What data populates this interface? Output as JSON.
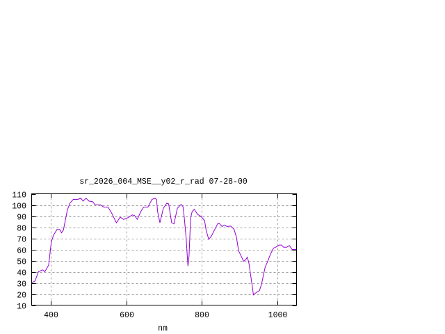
{
  "chart_data": {
    "type": "line",
    "title": "sr_2026_004_MSE__y02_r_rad 07-28-00",
    "xlabel": "nm",
    "ylabel": "",
    "xlim": [
      350,
      1050
    ],
    "ylim": [
      10,
      110
    ],
    "xticks": [
      400,
      600,
      800,
      1000
    ],
    "yticks": [
      10,
      20,
      30,
      40,
      50,
      60,
      70,
      80,
      90,
      100,
      110
    ],
    "grid": true,
    "legend": "none",
    "line_color": "#9400d3",
    "series": [
      {
        "x": [
          350,
          359,
          368,
          379,
          385,
          395,
          402,
          408,
          417,
          424,
          429,
          434,
          439,
          444,
          451,
          460,
          472,
          480,
          486,
          494,
          501,
          511,
          518,
          532,
          541,
          552,
          561,
          574,
          584,
          593,
          604,
          616,
          622,
          629,
          640,
          646,
          657,
          668,
          676,
          680,
          683,
          689,
          698,
          707,
          712,
          720,
          726,
          735,
          745,
          750,
          753,
          758,
          763,
          766,
          770,
          774,
          780,
          788,
          798,
          807,
          811,
          818,
          825,
          833,
          842,
          846,
          853,
          860,
          866,
          876,
          885,
          891,
          897,
          903,
          910,
          915,
          920,
          924,
          931,
          936,
          945,
          952,
          958,
          967,
          973,
          981,
          989,
          998,
          1004,
          1010,
          1016,
          1024,
          1031,
          1038,
          1050
        ],
        "y": [
          30,
          31.7,
          40,
          41.7,
          40,
          46,
          67,
          73,
          78,
          78,
          75,
          77.5,
          86,
          95,
          101.5,
          105,
          105,
          106,
          103.5,
          106,
          103.5,
          103,
          100,
          100,
          98,
          98,
          93,
          84,
          89,
          87,
          88.5,
          91,
          90.5,
          87,
          95,
          98,
          98,
          105,
          106,
          105,
          94,
          84,
          97,
          101.5,
          101,
          84,
          83,
          97,
          100.5,
          98.5,
          90,
          71,
          45,
          54.5,
          88,
          94,
          96,
          91.7,
          89.5,
          86,
          77.5,
          69,
          72,
          77.5,
          83.3,
          83.3,
          80.6,
          82,
          80.6,
          81,
          78,
          71,
          58.7,
          54.5,
          49.4,
          50.6,
          53,
          48,
          31.7,
          19.2,
          21.7,
          23,
          29.6,
          44,
          48.7,
          55.6,
          61.2,
          62.5,
          64,
          64,
          62,
          62,
          63.5,
          60,
          60
        ]
      }
    ]
  }
}
